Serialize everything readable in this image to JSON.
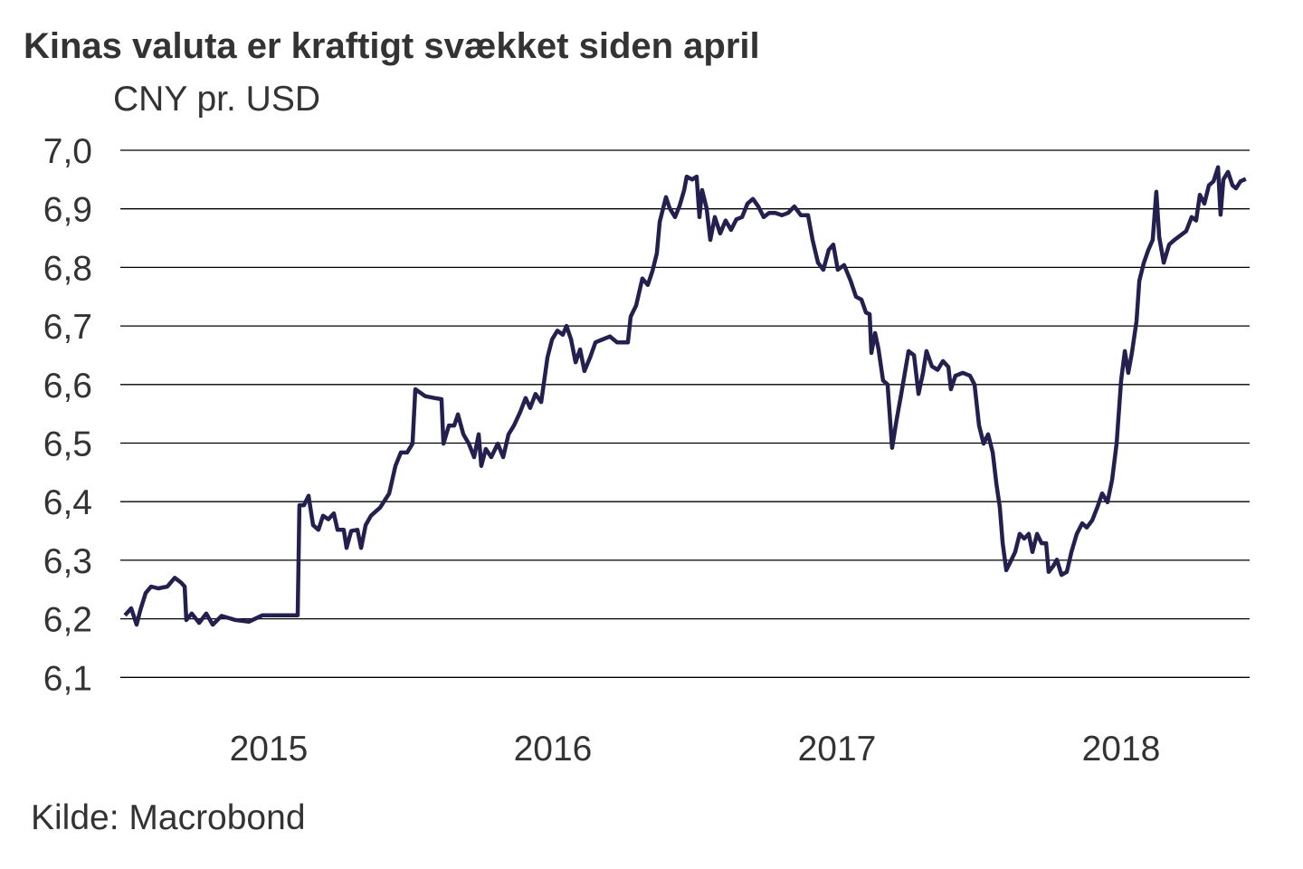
{
  "chart_data": {
    "type": "line",
    "title": "Kinas valuta er kraftigt svækket siden april",
    "ylabel": "CNY pr. USD",
    "xlabel": "",
    "source": "Kilde: Macrobond",
    "ylim": [
      6.1,
      7.0
    ],
    "yticks": [
      "7,0",
      "6,9",
      "6,8",
      "6,7",
      "6,6",
      "6,5",
      "6,4",
      "6,3",
      "6,2",
      "6,1"
    ],
    "ytick_values": [
      7.0,
      6.9,
      6.8,
      6.7,
      6.6,
      6.5,
      6.4,
      6.3,
      6.2,
      6.1
    ],
    "xlim": [
      2014.99,
      2018.97
    ],
    "xticks": [
      "2015",
      "2016",
      "2017",
      "2018"
    ],
    "xtick_values": [
      2015.5,
      2016.5,
      2017.5,
      2018.5
    ],
    "grid": true,
    "line_color": "#23204f",
    "series": [
      {
        "name": "CNY pr. USD",
        "points": [
          [
            2014.994,
            6.206
          ],
          [
            2015.016,
            6.218
          ],
          [
            2015.035,
            6.19
          ],
          [
            2015.048,
            6.215
          ],
          [
            2015.067,
            6.244
          ],
          [
            2015.086,
            6.255
          ],
          [
            2015.111,
            6.252
          ],
          [
            2015.143,
            6.255
          ],
          [
            2015.169,
            6.27
          ],
          [
            2015.191,
            6.262
          ],
          [
            2015.204,
            6.255
          ],
          [
            2015.21,
            6.198
          ],
          [
            2015.229,
            6.209
          ],
          [
            2015.255,
            6.193
          ],
          [
            2015.28,
            6.209
          ],
          [
            2015.303,
            6.19
          ],
          [
            2015.334,
            6.205
          ],
          [
            2015.382,
            6.198
          ],
          [
            2015.43,
            6.195
          ],
          [
            2015.478,
            6.206
          ],
          [
            2015.541,
            6.206
          ],
          [
            2015.602,
            6.206
          ],
          [
            2015.608,
            6.394
          ],
          [
            2015.624,
            6.394
          ],
          [
            2015.64,
            6.41
          ],
          [
            2015.656,
            6.36
          ],
          [
            2015.675,
            6.352
          ],
          [
            2015.691,
            6.376
          ],
          [
            2015.71,
            6.37
          ],
          [
            2015.729,
            6.38
          ],
          [
            2015.742,
            6.352
          ],
          [
            2015.764,
            6.352
          ],
          [
            2015.774,
            6.321
          ],
          [
            2015.79,
            6.35
          ],
          [
            2015.812,
            6.352
          ],
          [
            2015.825,
            6.321
          ],
          [
            2015.841,
            6.36
          ],
          [
            2015.86,
            6.376
          ],
          [
            2015.892,
            6.39
          ],
          [
            2015.924,
            6.414
          ],
          [
            2015.946,
            6.461
          ],
          [
            2015.965,
            6.484
          ],
          [
            2015.987,
            6.484
          ],
          [
            2016.006,
            6.499
          ],
          [
            2016.016,
            6.592
          ],
          [
            2016.051,
            6.58
          ],
          [
            2016.083,
            6.577
          ],
          [
            2016.108,
            6.575
          ],
          [
            2016.115,
            6.499
          ],
          [
            2016.134,
            6.53
          ],
          [
            2016.153,
            6.53
          ],
          [
            2016.166,
            6.549
          ],
          [
            2016.185,
            6.515
          ],
          [
            2016.204,
            6.499
          ],
          [
            2016.223,
            6.476
          ],
          [
            2016.239,
            6.515
          ],
          [
            2016.248,
            6.461
          ],
          [
            2016.264,
            6.49
          ],
          [
            2016.283,
            6.476
          ],
          [
            2016.306,
            6.499
          ],
          [
            2016.325,
            6.476
          ],
          [
            2016.344,
            6.515
          ],
          [
            2016.363,
            6.53
          ],
          [
            2016.385,
            6.553
          ],
          [
            2016.404,
            6.577
          ],
          [
            2016.42,
            6.56
          ],
          [
            2016.439,
            6.584
          ],
          [
            2016.459,
            6.57
          ],
          [
            2016.481,
            6.646
          ],
          [
            2016.497,
            6.677
          ],
          [
            2016.516,
            6.692
          ],
          [
            2016.535,
            6.685
          ],
          [
            2016.548,
            6.7
          ],
          [
            2016.564,
            6.677
          ],
          [
            2016.58,
            6.638
          ],
          [
            2016.596,
            6.66
          ],
          [
            2016.611,
            6.623
          ],
          [
            2016.631,
            6.646
          ],
          [
            2016.65,
            6.672
          ],
          [
            2016.675,
            6.677
          ],
          [
            2016.701,
            6.682
          ],
          [
            2016.726,
            6.672
          ],
          [
            2016.764,
            6.672
          ],
          [
            2016.774,
            6.716
          ],
          [
            2016.793,
            6.735
          ],
          [
            2016.815,
            6.781
          ],
          [
            2016.834,
            6.77
          ],
          [
            2016.85,
            6.793
          ],
          [
            2016.866,
            6.824
          ],
          [
            2016.876,
            6.878
          ],
          [
            2016.898,
            6.92
          ],
          [
            2016.911,
            6.901
          ],
          [
            2016.93,
            6.886
          ],
          [
            2016.946,
            6.905
          ],
          [
            2016.962,
            6.932
          ],
          [
            2016.971,
            6.955
          ],
          [
            2016.99,
            6.95
          ],
          [
            2017.006,
            6.955
          ],
          [
            2017.016,
            6.886
          ],
          [
            2017.025,
            6.932
          ],
          [
            2017.041,
            6.901
          ],
          [
            2017.054,
            6.847
          ],
          [
            2017.07,
            6.886
          ],
          [
            2017.089,
            6.858
          ],
          [
            2017.108,
            6.88
          ],
          [
            2017.127,
            6.864
          ],
          [
            2017.146,
            6.882
          ],
          [
            2017.166,
            6.886
          ],
          [
            2017.185,
            6.909
          ],
          [
            2017.204,
            6.917
          ],
          [
            2017.223,
            6.904
          ],
          [
            2017.242,
            6.886
          ],
          [
            2017.261,
            6.893
          ],
          [
            2017.283,
            6.893
          ],
          [
            2017.306,
            6.889
          ],
          [
            2017.328,
            6.893
          ],
          [
            2017.35,
            6.904
          ],
          [
            2017.373,
            6.889
          ],
          [
            2017.398,
            6.889
          ],
          [
            2017.414,
            6.847
          ],
          [
            2017.433,
            6.808
          ],
          [
            2017.452,
            6.796
          ],
          [
            2017.471,
            6.83
          ],
          [
            2017.487,
            6.839
          ],
          [
            2017.503,
            6.796
          ],
          [
            2017.525,
            6.804
          ],
          [
            2017.548,
            6.777
          ],
          [
            2017.567,
            6.75
          ],
          [
            2017.586,
            6.745
          ],
          [
            2017.602,
            6.723
          ],
          [
            2017.615,
            6.72
          ],
          [
            2017.621,
            6.654
          ],
          [
            2017.634,
            6.688
          ],
          [
            2017.646,
            6.661
          ],
          [
            2017.662,
            6.607
          ],
          [
            2017.678,
            6.6
          ],
          [
            2017.694,
            6.492
          ],
          [
            2017.71,
            6.54
          ],
          [
            2017.726,
            6.584
          ],
          [
            2017.739,
            6.62
          ],
          [
            2017.752,
            6.657
          ],
          [
            2017.771,
            6.65
          ],
          [
            2017.787,
            6.584
          ],
          [
            2017.803,
            6.62
          ],
          [
            2017.815,
            6.657
          ],
          [
            2017.834,
            6.631
          ],
          [
            2017.854,
            6.625
          ],
          [
            2017.873,
            6.64
          ],
          [
            2017.892,
            6.63
          ],
          [
            2017.901,
            6.592
          ],
          [
            2017.917,
            6.615
          ],
          [
            2017.943,
            6.62
          ],
          [
            2017.968,
            6.615
          ],
          [
            2017.984,
            6.6
          ],
          [
            2018.0,
            6.53
          ],
          [
            2018.016,
            6.499
          ],
          [
            2018.032,
            6.515
          ],
          [
            2018.048,
            6.484
          ],
          [
            2018.061,
            6.43
          ],
          [
            2018.073,
            6.391
          ],
          [
            2018.083,
            6.329
          ],
          [
            2018.096,
            6.283
          ],
          [
            2018.111,
            6.298
          ],
          [
            2018.127,
            6.314
          ],
          [
            2018.143,
            6.345
          ],
          [
            2018.159,
            6.337
          ],
          [
            2018.175,
            6.345
          ],
          [
            2018.188,
            6.314
          ],
          [
            2018.204,
            6.345
          ],
          [
            2018.22,
            6.329
          ],
          [
            2018.236,
            6.329
          ],
          [
            2018.245,
            6.28
          ],
          [
            2018.261,
            6.29
          ],
          [
            2018.274,
            6.301
          ],
          [
            2018.29,
            6.275
          ],
          [
            2018.309,
            6.28
          ],
          [
            2018.325,
            6.314
          ],
          [
            2018.344,
            6.345
          ],
          [
            2018.363,
            6.363
          ],
          [
            2018.379,
            6.356
          ],
          [
            2018.398,
            6.368
          ],
          [
            2018.417,
            6.391
          ],
          [
            2018.433,
            6.414
          ],
          [
            2018.452,
            6.399
          ],
          [
            2018.468,
            6.437
          ],
          [
            2018.484,
            6.499
          ],
          [
            2018.5,
            6.607
          ],
          [
            2018.513,
            6.657
          ],
          [
            2018.525,
            6.62
          ],
          [
            2018.538,
            6.654
          ],
          [
            2018.554,
            6.708
          ],
          [
            2018.564,
            6.777
          ],
          [
            2018.58,
            6.808
          ],
          [
            2018.596,
            6.83
          ],
          [
            2018.611,
            6.847
          ],
          [
            2018.624,
            6.929
          ],
          [
            2018.634,
            6.852
          ],
          [
            2018.65,
            6.808
          ],
          [
            2018.669,
            6.839
          ],
          [
            2018.688,
            6.847
          ],
          [
            2018.71,
            6.855
          ],
          [
            2018.729,
            6.862
          ],
          [
            2018.748,
            6.886
          ],
          [
            2018.764,
            6.88
          ],
          [
            2018.777,
            6.924
          ],
          [
            2018.793,
            6.909
          ],
          [
            2018.809,
            6.94
          ],
          [
            2018.825,
            6.947
          ],
          [
            2018.841,
            6.971
          ],
          [
            2018.85,
            6.89
          ],
          [
            2018.86,
            6.95
          ],
          [
            2018.876,
            6.963
          ],
          [
            2018.892,
            6.94
          ],
          [
            2018.904,
            6.935
          ],
          [
            2018.92,
            6.947
          ],
          [
            2018.939,
            6.951
          ]
        ]
      }
    ]
  }
}
